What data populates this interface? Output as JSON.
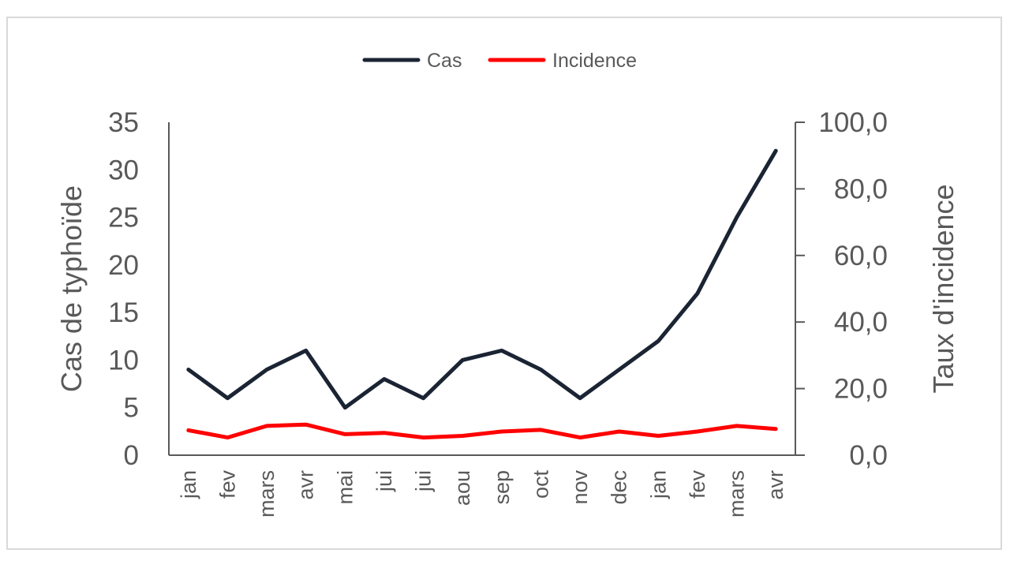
{
  "chart_data": {
    "type": "line",
    "categories": [
      "jan",
      "fev",
      "mars",
      "avr",
      "mai",
      "jui",
      "jui",
      "aou",
      "sep",
      "oct",
      "nov",
      "dec",
      "jan",
      "fev",
      "mars",
      "avr"
    ],
    "series": [
      {
        "name": "Cas",
        "axis": "left",
        "color": "#1b2433",
        "values": [
          9,
          6,
          9,
          11,
          5,
          8,
          6,
          10,
          11,
          9,
          6,
          9,
          12,
          17,
          25,
          32
        ]
      },
      {
        "name": "Incidence",
        "axis": "right",
        "color": "#ff0000",
        "values": [
          7.5,
          5.3,
          8.8,
          9.2,
          6.3,
          6.7,
          5.3,
          5.8,
          7.1,
          7.6,
          5.3,
          7.1,
          5.8,
          7.1,
          8.8,
          7.9
        ]
      }
    ],
    "ylabel": "Cas de typhoïde",
    "ylabel_right": "Taux d'incidence",
    "ylim": [
      0,
      35
    ],
    "yticks": [
      "0",
      "5",
      "10",
      "15",
      "20",
      "25",
      "30",
      "35"
    ],
    "ylim_right": [
      0,
      100
    ],
    "yticks_right": [
      "0,0",
      "20,0",
      "40,0",
      "60,0",
      "80,0",
      "100,0"
    ],
    "legend_position": "top-center",
    "grid": false
  }
}
